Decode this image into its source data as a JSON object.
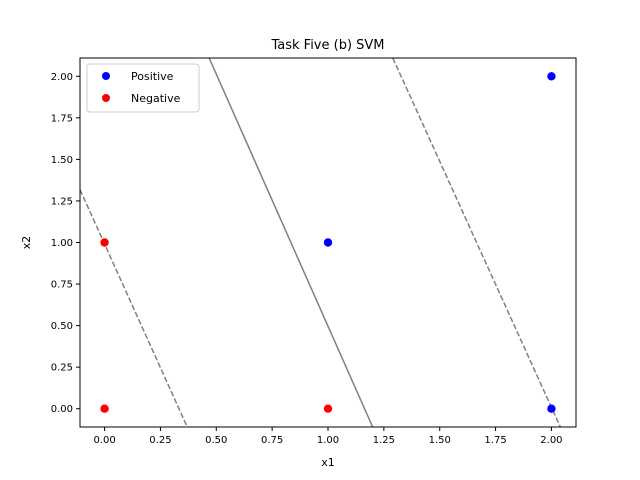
{
  "chart_data": {
    "type": "scatter",
    "title": "Task Five (b) SVM",
    "xlabel": "x1",
    "ylabel": "x2",
    "xlim": [
      -0.11,
      2.11
    ],
    "ylim": [
      -0.11,
      2.11
    ],
    "xticks": [
      "0.00",
      "0.25",
      "0.50",
      "0.75",
      "1.00",
      "1.25",
      "1.50",
      "1.75",
      "2.00"
    ],
    "yticks": [
      "0.00",
      "0.25",
      "0.50",
      "0.75",
      "1.00",
      "1.25",
      "1.50",
      "1.75",
      "2.00"
    ],
    "grid": false,
    "legend_position": "top-left",
    "series": [
      {
        "name": "Positive",
        "color": "#0000ff",
        "points": [
          [
            2.0,
            2.0
          ],
          [
            1.0,
            1.0
          ],
          [
            2.0,
            0.0
          ]
        ]
      },
      {
        "name": "Negative",
        "color": "#ff0000",
        "points": [
          [
            0.0,
            1.0
          ],
          [
            0.0,
            0.0
          ],
          [
            1.0,
            0.0
          ]
        ]
      }
    ],
    "lines": [
      {
        "role": "decision-boundary",
        "style": "solid",
        "color": "#808080",
        "points": [
          [
            0.468,
            2.11
          ],
          [
            1.2,
            -0.11
          ]
        ]
      },
      {
        "role": "margin-lower",
        "style": "dashed",
        "color": "#808080",
        "points": [
          [
            -0.11,
            1.318
          ],
          [
            0.37,
            -0.11
          ]
        ]
      },
      {
        "role": "margin-upper",
        "style": "dashed",
        "color": "#808080",
        "points": [
          [
            1.29,
            2.11
          ],
          [
            2.04,
            -0.11
          ]
        ]
      }
    ]
  }
}
